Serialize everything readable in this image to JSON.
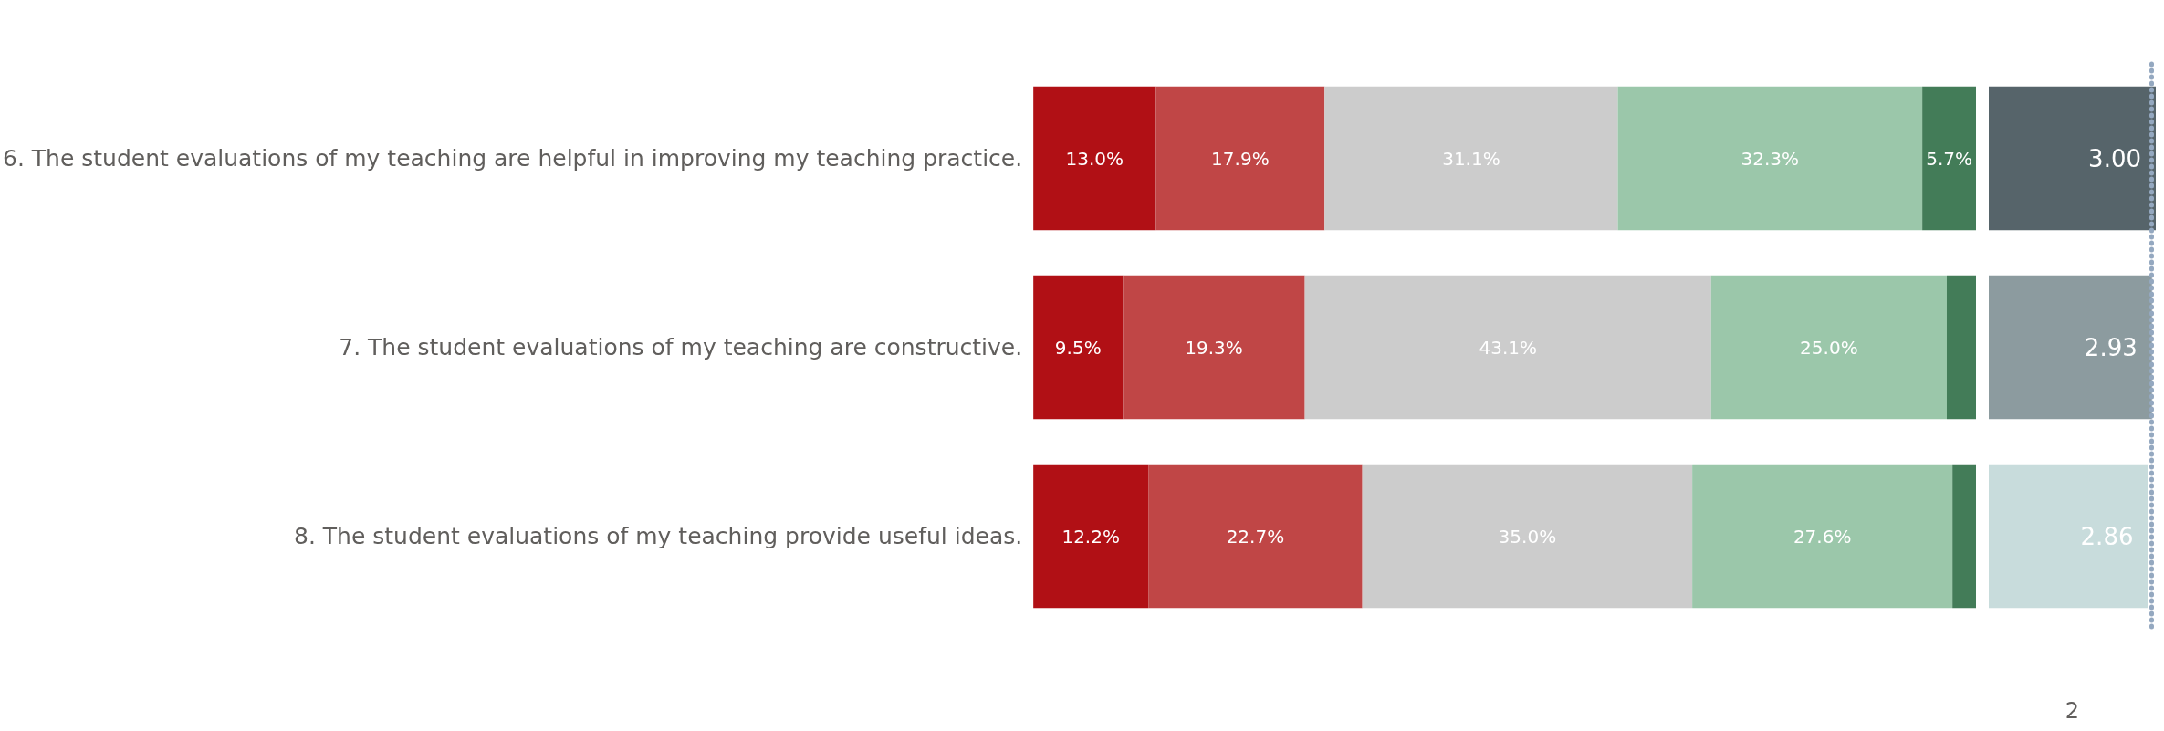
{
  "chart_data": [
    {
      "type": "bar",
      "orientation": "horizontal",
      "stacked": true,
      "xlim": [
        0,
        100
      ],
      "tick_labels": "y",
      "grid": false,
      "categories": [
        "6. The student evaluations of my teaching are helpful in improving my teaching practice.",
        "7. The student evaluations of my teaching are constructive.",
        "8. The student evaluations of my teaching provide useful ideas."
      ],
      "series": [
        {
          "color": "#b11015",
          "values": [
            13.0,
            9.5,
            12.2
          ],
          "value_labels": [
            "13.0%",
            "9.5%",
            "12.2%"
          ]
        },
        {
          "color": "#c04646",
          "values": [
            17.9,
            19.3,
            22.7
          ],
          "value_labels": [
            "17.9%",
            "19.3%",
            "22.7%"
          ]
        },
        {
          "color": "#cccccc",
          "values": [
            31.1,
            43.1,
            35.0
          ],
          "value_labels": [
            "31.1%",
            "43.1%",
            "35.0%"
          ]
        },
        {
          "color": "#9bc7aa",
          "values": [
            32.3,
            25.0,
            27.6
          ],
          "value_labels": [
            "32.3%",
            "25.0%",
            "27.6%"
          ]
        },
        {
          "color": "#437c58",
          "values": [
            5.7,
            3.1,
            2.5
          ],
          "value_labels": [
            "5.7%",
            null,
            null
          ]
        }
      ]
    },
    {
      "type": "bar",
      "orientation": "horizontal",
      "tick_labels": false,
      "annotations": [
        "2"
      ],
      "categories": [
        null,
        null,
        null
      ],
      "values": [
        3.0,
        2.93,
        2.86
      ],
      "colors": [
        "#56646a",
        "#8c9b9f",
        "#c8dcdc"
      ],
      "value_labels": [
        "3.00",
        "2.93",
        "2.86"
      ],
      "ref_lines": [
        {
          "axis": "x",
          "value": 2.93,
          "color": "#94a8c0",
          "line_style": "dotted"
        }
      ]
    }
  ]
}
